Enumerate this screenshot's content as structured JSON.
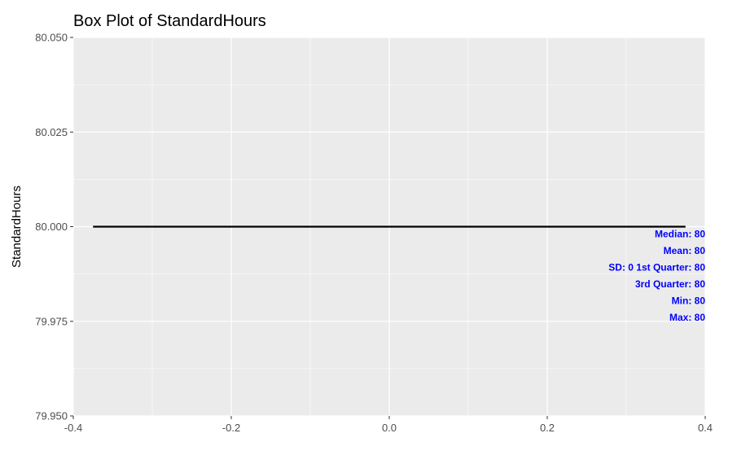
{
  "chart_data": {
    "type": "box",
    "title": "Box Plot of StandardHours",
    "xlabel": "",
    "ylabel": "StandardHours",
    "xlim": [
      -0.4,
      0.4
    ],
    "ylim": [
      79.95,
      80.05
    ],
    "x_ticks": [
      -0.4,
      -0.2,
      0.0,
      0.2,
      0.4
    ],
    "x_tick_labels": [
      "-0.4",
      "-0.2",
      "0.0",
      "0.2",
      "0.4"
    ],
    "y_ticks": [
      79.95,
      79.975,
      80.0,
      80.025,
      80.05
    ],
    "y_tick_labels": [
      "79.950",
      "79.975",
      "80.000",
      "80.025",
      "80.050"
    ],
    "grid": true,
    "box": {
      "x_range": [
        -0.375,
        0.375
      ],
      "min": 80,
      "q1": 80,
      "median": 80,
      "q3": 80,
      "max": 80,
      "mean": 80,
      "sd": 0
    },
    "annotations": [
      "Median: 80",
      "Mean: 80",
      "SD:  0 1st Quarter: 80",
      "3rd Quarter: 80",
      "Min: 80",
      "Max: 80"
    ],
    "colors": {
      "panel_background": "#ebebeb",
      "grid_line": "#ffffff",
      "box_line": "#000000",
      "annotation_text": "#0000ff",
      "tick_text": "#4d4d4d"
    }
  }
}
